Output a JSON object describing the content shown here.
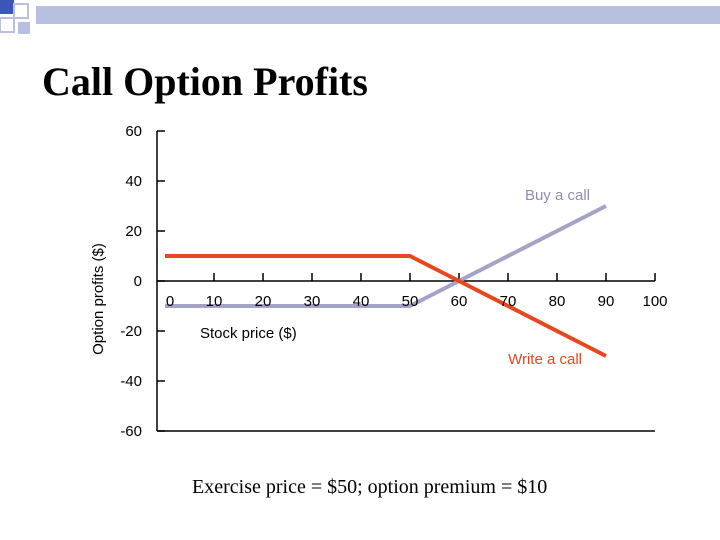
{
  "slide": {
    "title": "Call Option Profits",
    "footer": "Exercise price = $50; option premium = $10"
  },
  "decoration": {
    "squares_color": "#3b57b5",
    "bar_color": "#b7c0de"
  },
  "chart_data": {
    "type": "line",
    "title": "",
    "xlabel": "Stock price ($)",
    "ylabel": "Option profits ($)",
    "xlim": [
      0,
      100
    ],
    "ylim": [
      -60,
      60
    ],
    "x_ticks": [
      0,
      10,
      20,
      30,
      40,
      50,
      60,
      70,
      80,
      90,
      100
    ],
    "y_ticks": [
      60,
      40,
      20,
      0,
      -20,
      -40,
      -60
    ],
    "grid": false,
    "series": [
      {
        "name": "Buy a call",
        "color": "#a3a3c8",
        "x": [
          0,
          50,
          60,
          90
        ],
        "y": [
          -10,
          -10,
          0,
          30
        ]
      },
      {
        "name": "Write a call",
        "color": "#e8461e",
        "x": [
          0,
          50,
          60,
          90
        ],
        "y": [
          10,
          10,
          0,
          -30
        ]
      }
    ]
  }
}
